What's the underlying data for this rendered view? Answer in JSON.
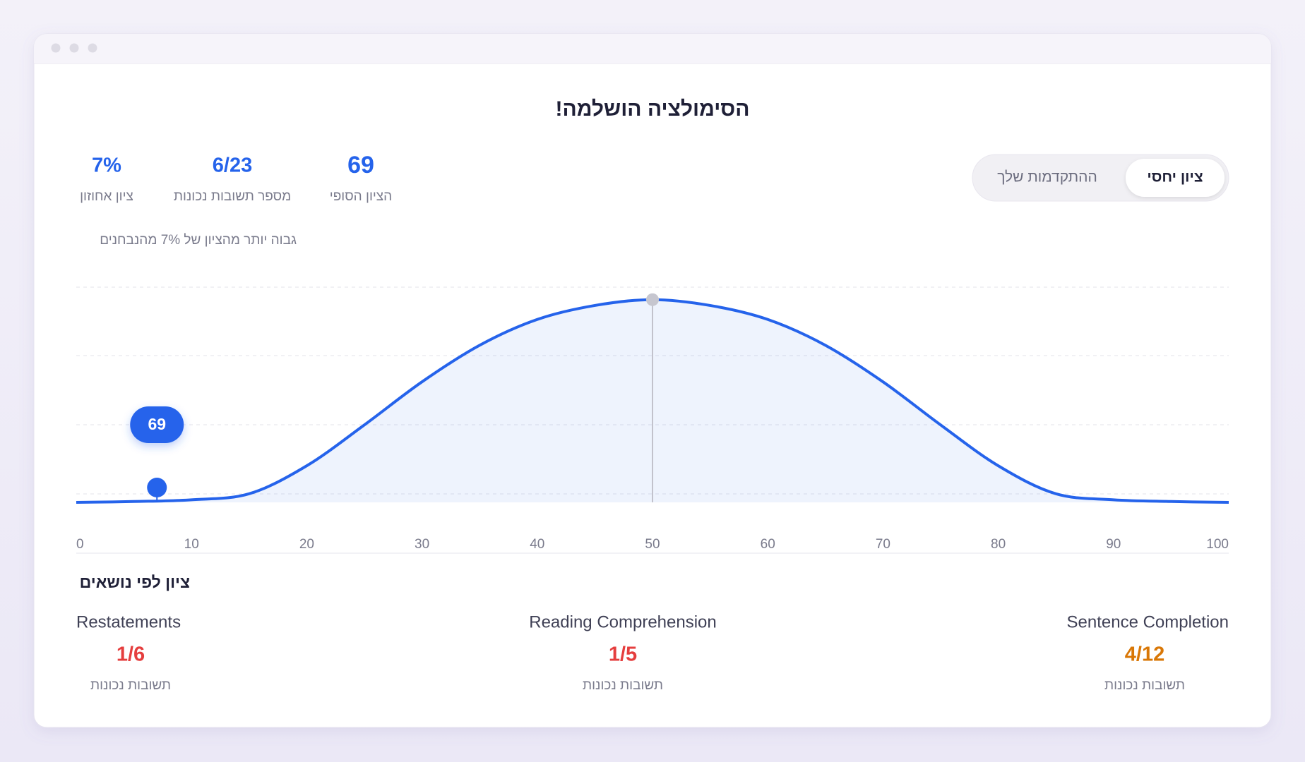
{
  "header": {
    "title": "הסימולציה הושלמה!"
  },
  "tabs": [
    {
      "label": "ציון יחסי",
      "active": true
    },
    {
      "label": "ההתקדמות שלך",
      "active": false
    }
  ],
  "stats": [
    {
      "value": "69",
      "label": "הציון הסופי"
    },
    {
      "value": "6/23",
      "label": "מספר תשובות נכונות"
    },
    {
      "value": "7%",
      "label": "ציון אחוזון"
    }
  ],
  "note": "גבוה יותר מהציון של 7% מהנבחנים",
  "chart_data": {
    "type": "area",
    "x": [
      0,
      5,
      10,
      15,
      20,
      25,
      30,
      35,
      40,
      45,
      50,
      55,
      60,
      65,
      70,
      75,
      80,
      85,
      90,
      95,
      100
    ],
    "values": [
      0,
      0.4,
      1.2,
      4,
      17,
      36,
      56,
      73,
      85,
      91.5,
      94.2,
      91.5,
      85,
      73,
      56,
      36,
      17,
      4,
      1.2,
      0.4,
      0
    ],
    "color": "#2563eb",
    "xlim": [
      0,
      100
    ],
    "ylim": [
      0,
      100
    ],
    "xticks": [
      0,
      10,
      20,
      30,
      40,
      50,
      60,
      70,
      80,
      90,
      100
    ],
    "marker_x": 7,
    "reference_x": 50
  },
  "topics": {
    "title": "ציון לפי נושאים",
    "items": [
      {
        "name": "Restatements",
        "score": "1/6",
        "label": "תשובות נכונות",
        "color": "#e53e3e"
      },
      {
        "name": "Reading Comprehension",
        "score": "1/5",
        "label": "תשובות נכונות",
        "color": "#e53e3e"
      },
      {
        "name": "Sentence Completion",
        "score": "4/12",
        "label": "תשובות נכונות",
        "color": "#d97706"
      }
    ]
  }
}
